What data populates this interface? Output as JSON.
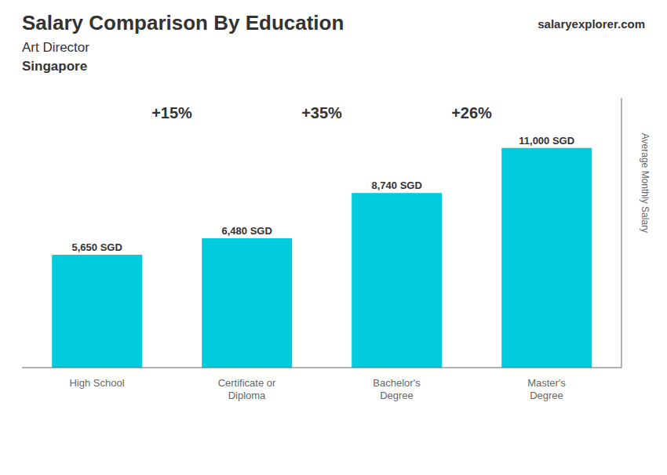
{
  "chart_data": {
    "type": "bar",
    "title": "Salary Comparison By Education",
    "subtitle": "Art Director",
    "annotations": [
      "Singapore",
      "salaryexplorer.com",
      "+15%",
      "+35%",
      "+26%"
    ],
    "categories": [
      "High School",
      "Certificate or\nDiploma",
      "Bachelor's\nDegree",
      "Master's\nDegree"
    ],
    "values": [
      5650,
      6480,
      8740,
      11000
    ],
    "value_labels": [
      "5,650 SGD",
      "6,480 SGD",
      "8,740 SGD",
      "11,000 SGD"
    ],
    "data_labels": true,
    "color": "#00ccdd",
    "ylabel": "Average Monthly Salary",
    "ylim": [
      0,
      13500
    ],
    "tick_labels": "x",
    "grid": false
  }
}
